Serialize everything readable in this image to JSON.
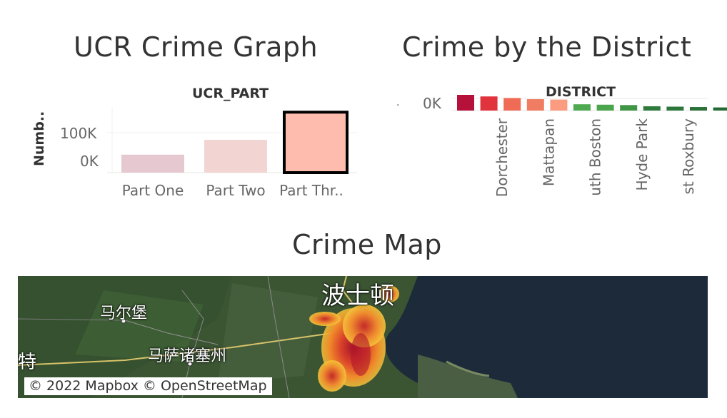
{
  "titles": {
    "ucr": "UCR Crime Graph",
    "district": "Crime by the District",
    "map": "Crime Map"
  },
  "chart_data": [
    {
      "type": "bar",
      "title": "UCR Crime Graph",
      "xlabel": "UCR_PART",
      "ylabel": "Numb..",
      "categories": [
        "Part One",
        "Part Two",
        "Part Thr.."
      ],
      "values": [
        52000,
        95000,
        175000
      ],
      "yticks": [
        "100K",
        "0K"
      ],
      "ylim": [
        0,
        190000
      ],
      "colors": [
        "#e6c8d0",
        "#f2d4d2",
        "#fdbcae"
      ],
      "highlighted": "Part Thr.."
    },
    {
      "type": "bar",
      "title": "Crime by the District",
      "xlabel": "DISTRICT",
      "ylabel": "",
      "categories": [
        "",
        "Dorchester",
        "",
        "Mattapan",
        "",
        "uth Boston",
        "",
        "Hyde Park",
        "",
        "st Roxbury",
        "",
        ""
      ],
      "values": [
        20000,
        18000,
        16000,
        14500,
        14000,
        8000,
        7500,
        7000,
        5500,
        5000,
        4500,
        4000
      ],
      "yticks": [
        "0K"
      ],
      "ylim": [
        0,
        20000
      ],
      "colors": [
        "#b5113a",
        "#e0333e",
        "#ef6b55",
        "#f07c62",
        "#fb9b7f",
        "#4ea950",
        "#4aa54d",
        "#3f9645",
        "#2f7b3d",
        "#2e773b",
        "#2b7239",
        "#256a34"
      ]
    }
  ],
  "map": {
    "attribution": "© 2022 Mapbox © OpenStreetMap",
    "labels": [
      "波士顿",
      "马尔堡",
      "马萨诸塞州",
      "特"
    ]
  }
}
